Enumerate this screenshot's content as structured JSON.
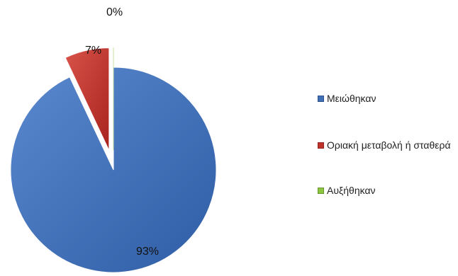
{
  "chart_data": {
    "type": "pie",
    "exploded": true,
    "title": "",
    "legend_position": "right",
    "slices": [
      {
        "label": "Μειώθηκαν",
        "value": 93,
        "value_label": "93%",
        "color": "#3f6fb7"
      },
      {
        "label": "Οριακή μεταβολή ή σταθερά",
        "value": 7,
        "value_label": "7%",
        "color": "#c0332b"
      },
      {
        "label": "Αυξήθηκαν",
        "value": 0,
        "value_label": "0%",
        "color": "#8cc63f"
      }
    ]
  }
}
